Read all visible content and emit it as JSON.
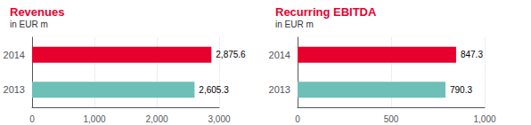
{
  "chart_data": [
    {
      "type": "bar",
      "orientation": "horizontal",
      "title": "Revenues",
      "subtitle": "in EUR m",
      "categories": [
        "2014",
        "2013"
      ],
      "values": [
        2875.6,
        2605.3
      ],
      "value_labels": [
        "2,875.6",
        "2,605.3"
      ],
      "data_labels": true,
      "colors": [
        "#e8002d",
        "#6dbfb8"
      ],
      "xlim": [
        0,
        3000
      ],
      "xticks": [
        0,
        {
          "value": 1000,
          "label": "1,000"
        },
        {
          "value": 2000,
          "label": "2,000"
        },
        {
          "value": 3000,
          "label": "3,000"
        }
      ],
      "grid": true
    },
    {
      "type": "bar",
      "orientation": "horizontal",
      "title": "Recurring EBITDA",
      "subtitle": "in EUR m",
      "categories": [
        "2014",
        "2013"
      ],
      "values": [
        847.3,
        790.3
      ],
      "value_labels": [
        "847.3",
        "790.3"
      ],
      "data_labels": true,
      "colors": [
        "#e8002d",
        "#6dbfb8"
      ],
      "xlim": [
        0,
        1000
      ],
      "xticks": [
        0,
        500,
        {
          "value": 1000,
          "label": "1,000"
        }
      ],
      "grid": true
    }
  ]
}
